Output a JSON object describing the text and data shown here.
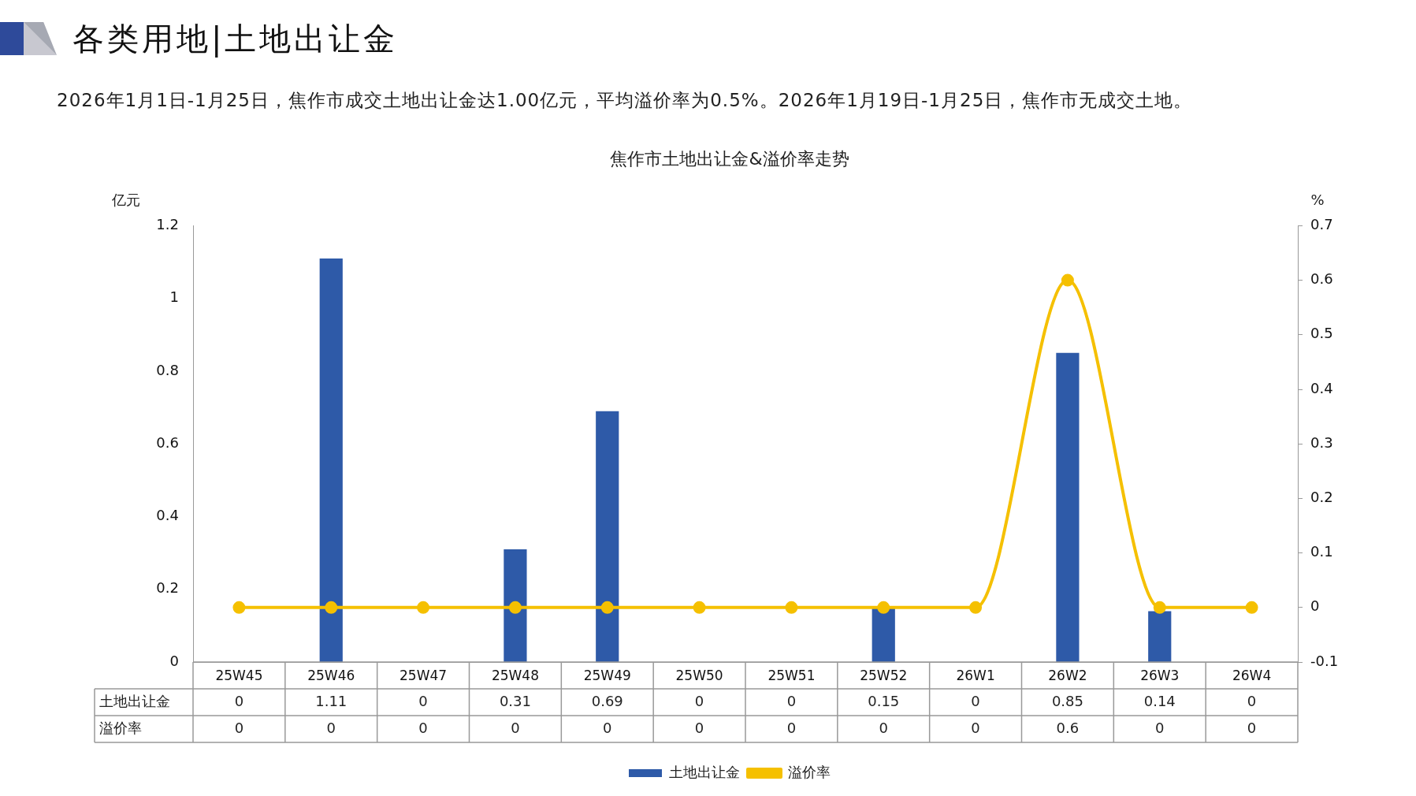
{
  "chart_data": {
    "type": "bar",
    "title": "焦作市土地出让金&溢价率走势",
    "annotations": [
      "各类用地|土地出让金",
      "2026年1月1日-1月25日，焦作市成交土地出让金达1.00亿元，平均溢价率为0.5%。2026年1月19日-1月25日，焦作市无成交土地。"
    ],
    "ylabel": "亿元",
    "y2label": "%",
    "categories": [
      "25W45",
      "25W46",
      "25W47",
      "25W48",
      "25W49",
      "25W50",
      "25W51",
      "25W52",
      "26W1",
      "26W2",
      "26W3",
      "26W4"
    ],
    "series": [
      {
        "name": "土地出让金",
        "color": "#2e5aa8",
        "values": [
          0,
          1.11,
          0,
          0.31,
          0.69,
          0,
          0,
          0.15,
          0,
          0.85,
          0.14,
          0
        ]
      },
      {
        "name": "溢价率",
        "type": "line",
        "axis": "y2",
        "color": "#f5c000",
        "values": [
          0,
          0,
          0,
          0,
          0,
          0,
          0,
          0,
          0,
          0.6,
          0,
          0
        ]
      }
    ],
    "ylim": [
      0,
      1.2
    ],
    "yticks": [
      0,
      0.2,
      0.4,
      0.6,
      0.8,
      1,
      1.2
    ],
    "y2lim": [
      -0.1,
      0.7
    ],
    "y2ticks": [
      -0.1,
      0,
      0.1,
      0.2,
      0.3,
      0.4,
      0.5,
      0.6,
      0.7
    ],
    "data_labels": true,
    "grid": false,
    "legend": "bottom",
    "marker": "circle"
  }
}
